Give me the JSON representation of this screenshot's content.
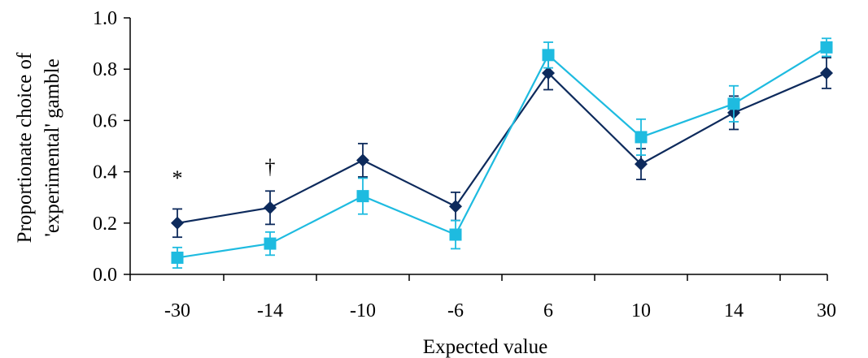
{
  "chart_data": {
    "type": "line",
    "categories": [
      "-30",
      "-14",
      "-10",
      "-6",
      "6",
      "10",
      "14",
      "30"
    ],
    "ylim": [
      0,
      1
    ],
    "yticks": [
      "0.0",
      "0.2",
      "0.4",
      "0.6",
      "0.8",
      "1.0"
    ],
    "xlabel": "Expected value",
    "ylabel_lines": [
      "Proportionate choice of",
      "'experimental' gamble"
    ],
    "grid": false,
    "series": [
      {
        "marker": "diamond",
        "color": "#0d2a5c",
        "values": [
          0.2,
          0.26,
          0.445,
          0.265,
          0.785,
          0.43,
          0.63,
          0.785
        ],
        "err": [
          0.055,
          0.065,
          0.065,
          0.055,
          0.065,
          0.06,
          0.065,
          0.06
        ]
      },
      {
        "marker": "square",
        "color": "#1ebbe0",
        "values": [
          0.065,
          0.12,
          0.305,
          0.155,
          0.855,
          0.535,
          0.665,
          0.885
        ],
        "err": [
          0.04,
          0.045,
          0.07,
          0.055,
          0.05,
          0.07,
          0.07,
          0.035
        ]
      }
    ],
    "annotations": [
      {
        "category": "-30",
        "text": "*"
      },
      {
        "category": "-14",
        "text": "†"
      }
    ]
  }
}
